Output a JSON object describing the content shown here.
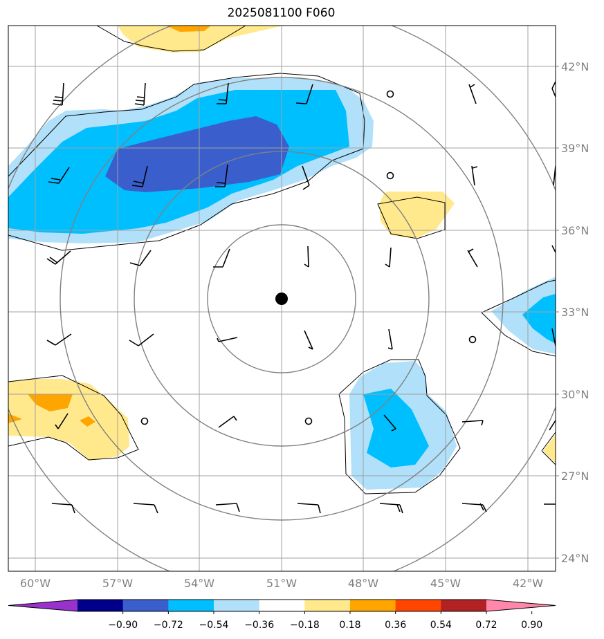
{
  "title": "2025081100 F060",
  "map": {
    "lat_labels": [
      "42°N",
      "39°N",
      "36°N",
      "33°N",
      "30°N",
      "27°N",
      "24°N"
    ],
    "lon_labels": [
      "60°W",
      "57°W",
      "54°W",
      "51°W",
      "48°W",
      "45°W",
      "42°W"
    ],
    "center_marker": "storm-center-dot"
  },
  "colorbar": {
    "ticks": [
      "−0.90",
      "−0.72",
      "−0.54",
      "−0.36",
      "−0.18",
      "0.18",
      "0.36",
      "0.54",
      "0.72",
      "0.90"
    ],
    "colors": [
      "#9932cc",
      "#00008b",
      "#3a5fcd",
      "#00bfff",
      "#b0e0fa",
      "#ffffff",
      "#ffe98c",
      "#ffa500",
      "#ff4500",
      "#b22222",
      "#ff88aa"
    ],
    "extend": "both"
  }
}
